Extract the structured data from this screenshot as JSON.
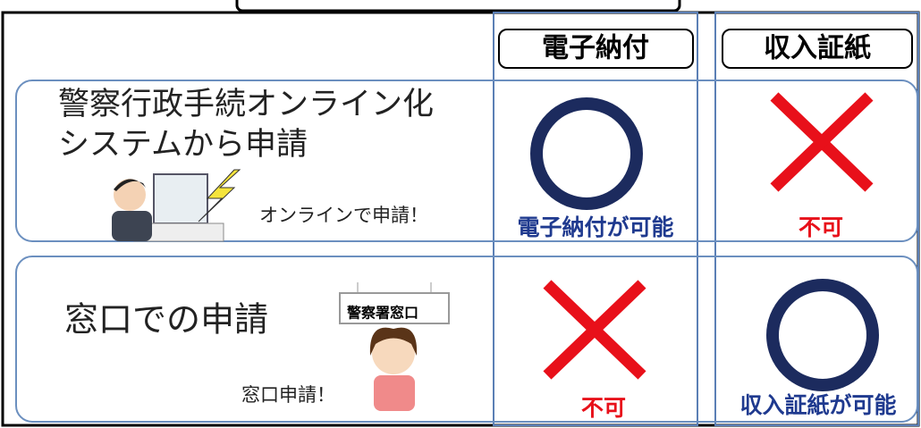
{
  "header": {
    "columns": [
      "電子納付",
      "収入証紙"
    ]
  },
  "rows": [
    {
      "label": [
        "警察行政手続オンライン化",
        "システムから申請"
      ],
      "note": "オンラインで申請！",
      "cells": [
        "電子納付が可能",
        "不可"
      ]
    },
    {
      "label": [
        "窓口での申請"
      ],
      "sign": "警察署窓口",
      "note": "窓口申請！",
      "cells": [
        "不可",
        "収入証紙が可能"
      ]
    }
  ]
}
